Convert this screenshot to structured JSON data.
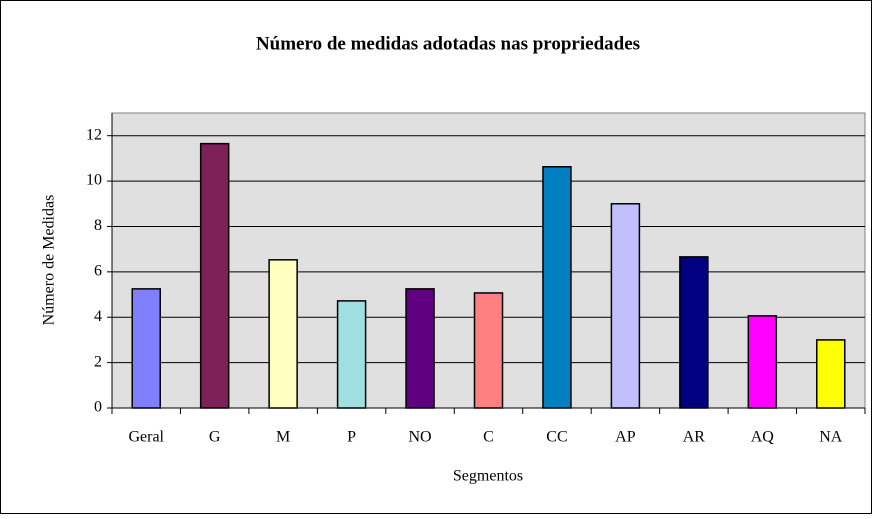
{
  "chart_data": {
    "type": "bar",
    "title": "Número de medidas adotadas nas propriedades",
    "x_label": "Segmentos",
    "y_label": "Número de Medidas",
    "categories": [
      "Geral",
      "G",
      "M",
      "P",
      "NO",
      "C",
      "CC",
      "AP",
      "AR",
      "AQ",
      "NA"
    ],
    "values": [
      5.25,
      11.65,
      6.53,
      4.72,
      5.25,
      5.07,
      10.63,
      9.0,
      6.66,
      4.06,
      3.0
    ],
    "colors": [
      "#8080ff",
      "#7f2159",
      "#ffffc0",
      "#a0e0e0",
      "#600080",
      "#ff8080",
      "#0080c0",
      "#c0c0ff",
      "#000080",
      "#ff00ff",
      "#ffff00"
    ],
    "ylim": [
      0,
      13
    ],
    "yticks": [
      0,
      2,
      4,
      6,
      8,
      10,
      12
    ],
    "grid": true
  }
}
